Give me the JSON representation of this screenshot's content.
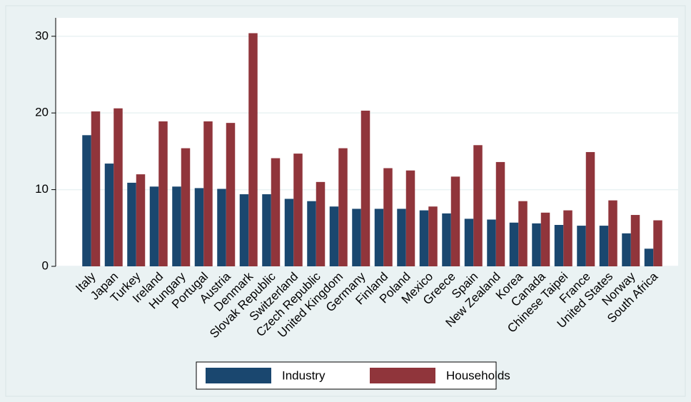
{
  "chart_data": {
    "type": "bar",
    "categories": [
      "Italy",
      "Japan",
      "Turkey",
      "Ireland",
      "Hungary",
      "Portugal",
      "Austria",
      "Denmark",
      "Slovak Republic",
      "Switzerland",
      "Czech Republic",
      "United Kingdom",
      "Germany",
      "Finland",
      "Poland",
      "Mexico",
      "Greece",
      "Spain",
      "New Zealand",
      "Korea",
      "Canada",
      "Chinese Taipei",
      "France",
      "United States",
      "Norway",
      "South Africa"
    ],
    "series": [
      {
        "name": "Industry",
        "color": "#1a476f",
        "values": [
          17.1,
          13.4,
          10.9,
          10.4,
          10.4,
          10.2,
          10.1,
          9.4,
          9.4,
          8.8,
          8.5,
          7.8,
          7.5,
          7.5,
          7.5,
          7.3,
          6.9,
          6.2,
          6.1,
          5.7,
          5.6,
          5.4,
          5.3,
          5.3,
          4.3,
          2.3
        ]
      },
      {
        "name": "Households",
        "color": "#90353b",
        "values": [
          20.2,
          20.6,
          12.0,
          18.9,
          15.4,
          18.9,
          18.7,
          30.4,
          14.1,
          14.7,
          11.0,
          15.4,
          20.3,
          12.8,
          12.5,
          7.8,
          11.7,
          15.8,
          13.6,
          8.5,
          7.0,
          7.3,
          14.9,
          8.6,
          6.7,
          6.0
        ]
      }
    ],
    "ylim": [
      0,
      32.4
    ],
    "yticks": [
      0,
      10,
      20,
      30
    ],
    "grid": true,
    "legend": "bottom"
  }
}
